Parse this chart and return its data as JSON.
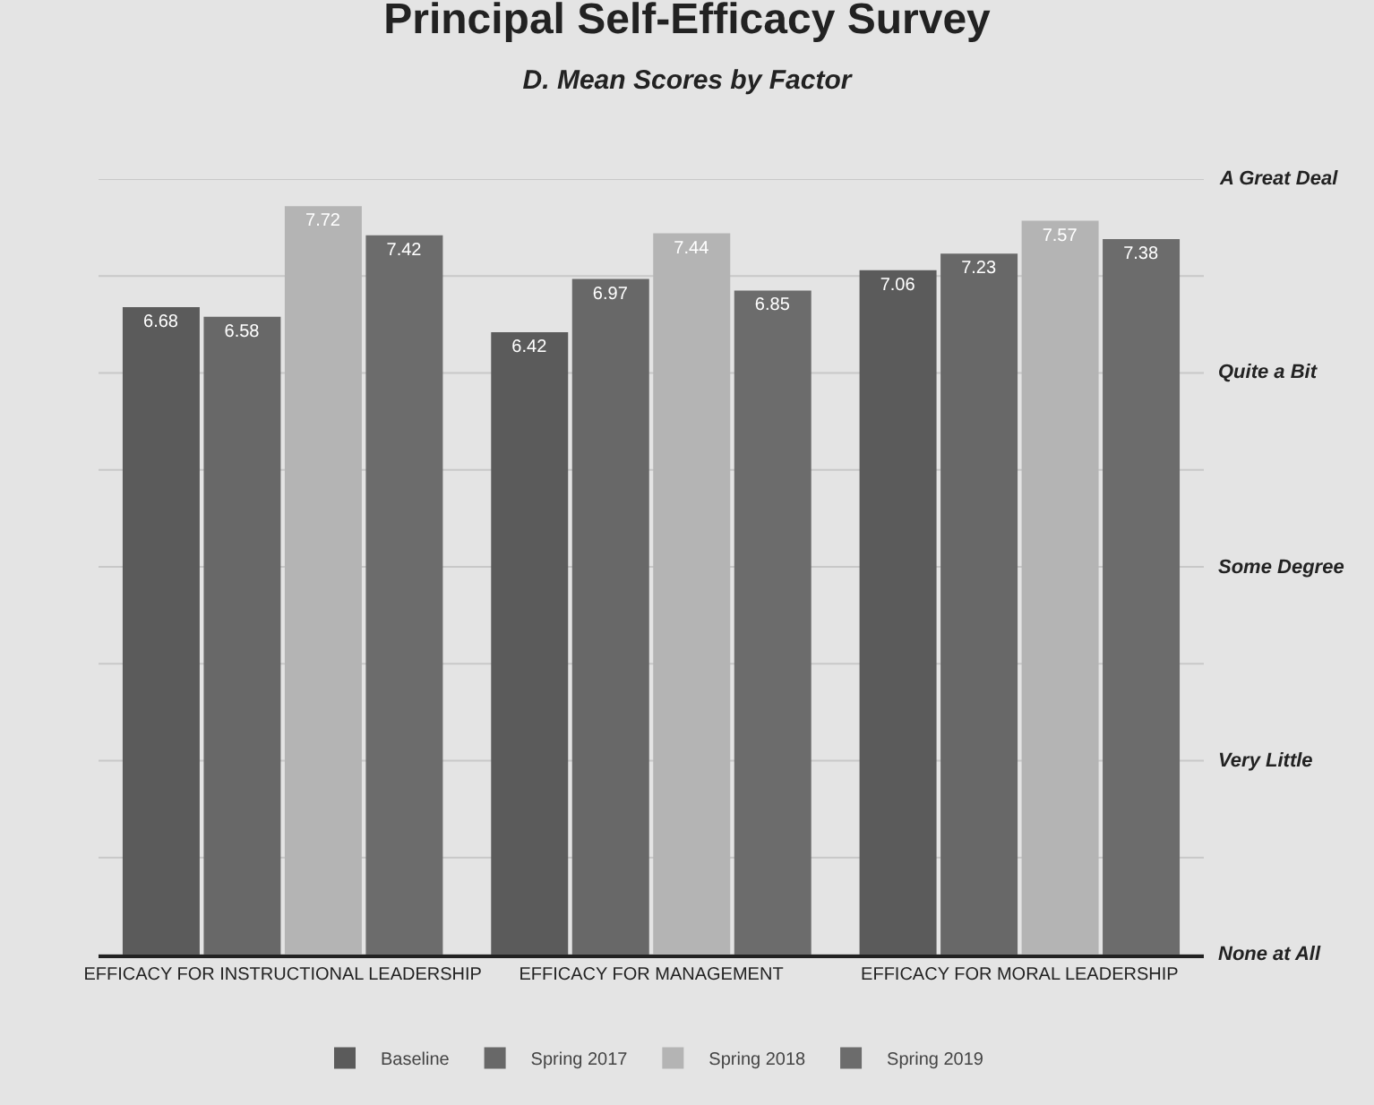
{
  "chart_data": {
    "type": "bar",
    "title": "Principal Self-Efficacy Survey",
    "subtitle": "D. Mean Scores by Factor",
    "categories": [
      "EFFICACY FOR INSTRUCTIONAL LEADERSHIP",
      "EFFICACY FOR MANAGEMENT",
      "EFFICACY FOR MORAL LEADERSHIP"
    ],
    "series": [
      {
        "name": "Baseline",
        "color": "#5b5b5b",
        "values": [
          6.68,
          6.42,
          7.06
        ]
      },
      {
        "name": "Spring 2017",
        "color": "#686868",
        "values": [
          6.58,
          6.97,
          7.23
        ]
      },
      {
        "name": "Spring 2018",
        "color": "#b4b4b4",
        "values": [
          7.72,
          7.44,
          7.57
        ]
      },
      {
        "name": "Spring 2019",
        "color": "#6c6c6c",
        "values": [
          7.42,
          6.85,
          7.38
        ]
      }
    ],
    "ylim": [
      0,
      8
    ],
    "yticks": [
      {
        "value": 0,
        "label": null
      },
      {
        "value": 1,
        "label": null
      },
      {
        "value": 2,
        "label": null
      },
      {
        "value": 3,
        "label": null
      },
      {
        "value": 4,
        "label": null
      },
      {
        "value": 5,
        "label": null
      },
      {
        "value": 6,
        "label": null
      },
      {
        "value": 7,
        "label": null
      },
      {
        "value": 8,
        "label": null
      }
    ],
    "annotations": [
      "A Great Deal",
      "Quite a Bit",
      "Some Degree",
      "Very Little",
      "None at All"
    ],
    "grid": true,
    "legend": "bottom",
    "data_labels": true
  }
}
